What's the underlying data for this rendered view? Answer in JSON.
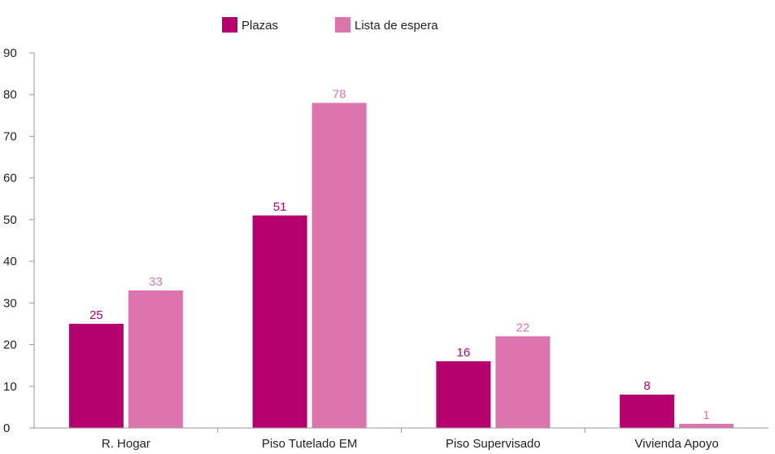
{
  "chart_data": {
    "type": "bar",
    "title": "",
    "xlabel": "",
    "ylabel": "",
    "categories": [
      "R. Hogar",
      "Piso Tutelado EM",
      "Piso Supervisado",
      "Vivienda Apoyo"
    ],
    "series": [
      {
        "name": "Plazas",
        "values": [
          25,
          51,
          16,
          8
        ],
        "color": "#b5006e"
      },
      {
        "name": "Lista de espera",
        "values": [
          33,
          78,
          22,
          1
        ],
        "color": "#dd74ad"
      }
    ],
    "ylim": [
      0,
      90
    ],
    "yticks": [
      0,
      10,
      20,
      30,
      40,
      50,
      60,
      70,
      80,
      90
    ],
    "grid": false,
    "legend_position": "top"
  }
}
